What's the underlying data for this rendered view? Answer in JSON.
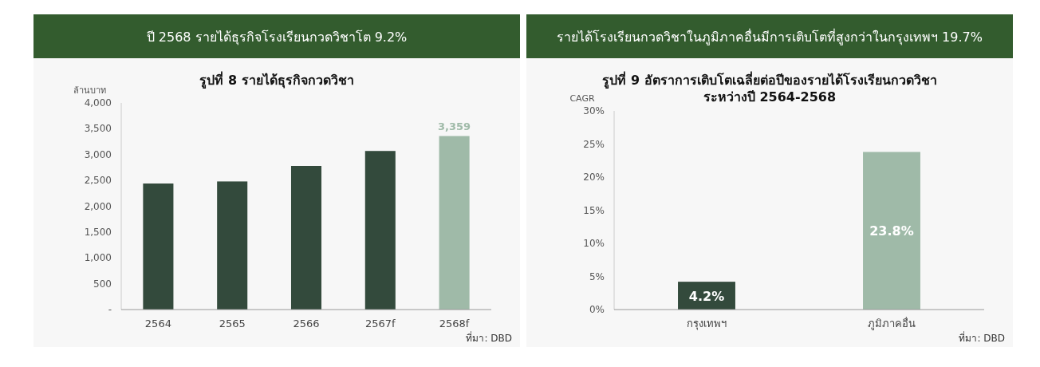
{
  "chart_data": [
    {
      "type": "bar",
      "title": "ปี 2568 รายได้ธุรกิจโรงเรียนกวดวิชาโต 9.2%",
      "subtitle": "รูปที่ 8 รายได้ธุรกิจกวดวิชา",
      "ylabel": "ล้านบาท",
      "categories": [
        "2564",
        "2565",
        "2566",
        "2567f",
        "2568f"
      ],
      "values": [
        2440,
        2480,
        2780,
        3070,
        3359
      ],
      "colors": [
        "#334a3c",
        "#334a3c",
        "#334a3c",
        "#334a3c",
        "#9fbaa8"
      ],
      "value_labels": [
        null,
        null,
        null,
        null,
        "3,359"
      ],
      "ylim": [
        0,
        4000
      ],
      "yticks": [
        {
          "value": 0,
          "label": "-"
        },
        500,
        {
          "value": 1000,
          "label": "1,000"
        },
        {
          "value": 1500,
          "label": "1,500"
        },
        {
          "value": 2000,
          "label": "2,000"
        },
        {
          "value": 2500,
          "label": "2,500"
        },
        {
          "value": 3000,
          "label": "3,000"
        },
        {
          "value": 3500,
          "label": "3,500"
        },
        {
          "value": 4000,
          "label": "4,000"
        }
      ],
      "annotations": [
        "ที่มา: DBD"
      ]
    },
    {
      "type": "bar",
      "title": "รายได้โรงเรียนกวดวิชาในภูมิภาคอื่นมีการเติบโตที่สูงกว่าในกรุงเทพฯ 19.7%",
      "subtitle": "รูปที่ 9 อัตราการเติบโตเฉลี่ยต่อปีของรายได้โรงเรียนกวดวิชา\nระหว่างปี 2564-2568",
      "ylabel": "CAGR",
      "categories": [
        "กรุงเทพฯ",
        "ภูมิภาคอื่น"
      ],
      "values": [
        4.2,
        23.8
      ],
      "colors": [
        "#334a3c",
        "#9fbaa8"
      ],
      "value_labels": [
        "4.2%",
        "23.8%"
      ],
      "ylim": [
        0,
        30
      ],
      "yticks": [
        {
          "value": 0,
          "label": "0%"
        },
        {
          "value": 5,
          "label": "5%"
        },
        {
          "value": 10,
          "label": "10%"
        },
        {
          "value": 15,
          "label": "15%"
        },
        {
          "value": 20,
          "label": "20%"
        },
        {
          "value": 25,
          "label": "25%"
        },
        {
          "value": 30,
          "label": "30%"
        }
      ],
      "annotations": [
        "ที่มา: DBD"
      ]
    }
  ]
}
